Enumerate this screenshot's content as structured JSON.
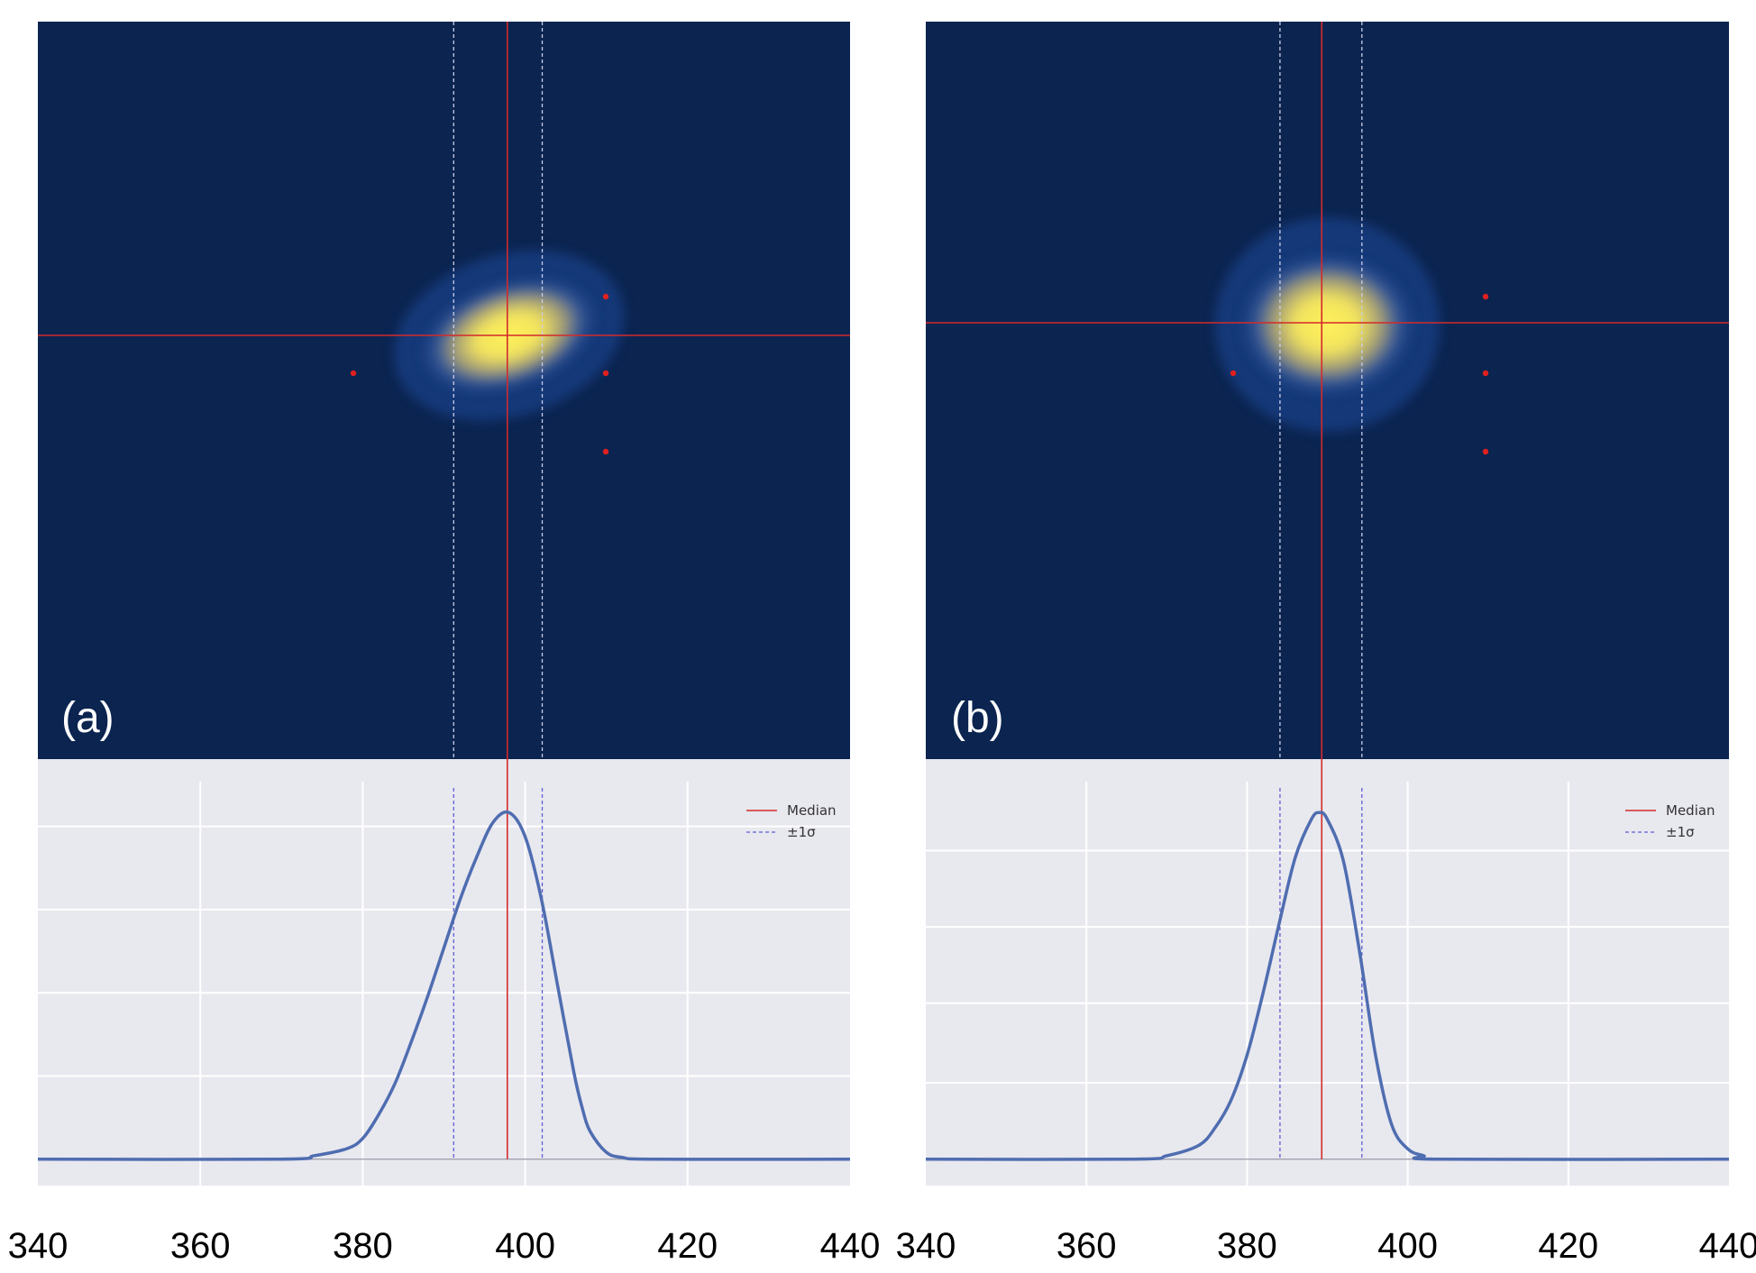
{
  "colors": {
    "heatmap_bg": "#0b2450",
    "plot_bg": "#e8e8ef",
    "grid": "#ffffff",
    "curve": "#4f6db0",
    "median_line": "#d42a2a",
    "sigma_line": "#5d60d2",
    "marker": "#e02020"
  },
  "chart_data": [
    {
      "panel_label": "(a)",
      "type": "heatmap",
      "x_data_range": [
        340,
        440
      ],
      "hotspot": {
        "x": 398,
        "elongation": "tilted-right"
      },
      "median_x": 397.8,
      "sigma_lower_x": 391.2,
      "sigma_upper_x": 402.1,
      "markers": [
        "left",
        "right-upper",
        "right-middle",
        "right-lower"
      ],
      "profile": {
        "type": "line",
        "legend": [
          {
            "label": "Median",
            "style": "solid",
            "color": "#d42a2a"
          },
          {
            "label": "±1σ",
            "style": "dashed",
            "color": "#5d60d2"
          }
        ],
        "x": [
          340,
          370,
          374,
          378,
          380,
          382,
          384,
          386,
          388,
          390,
          392,
          394,
          396,
          398,
          400,
          402,
          404,
          406,
          407,
          408,
          410,
          412,
          416,
          440
        ],
        "y": [
          0,
          0,
          0.01,
          0.03,
          0.06,
          0.13,
          0.22,
          0.34,
          0.47,
          0.61,
          0.75,
          0.87,
          0.97,
          1.0,
          0.93,
          0.75,
          0.5,
          0.25,
          0.15,
          0.08,
          0.02,
          0.005,
          0,
          0
        ],
        "xlim": [
          340,
          440
        ],
        "xticks": [
          340,
          360,
          380,
          400,
          420,
          440
        ],
        "ylim": [
          -0.05,
          1.05
        ],
        "ygrid": [
          0.24,
          0.48,
          0.72,
          0.96
        ],
        "grid": true
      }
    },
    {
      "panel_label": "(b)",
      "type": "heatmap",
      "x_data_range": [
        340,
        440
      ],
      "hotspot": {
        "x": 390,
        "elongation": "round"
      },
      "median_x": 389.3,
      "sigma_lower_x": 384.1,
      "sigma_upper_x": 394.3,
      "markers": [
        "left",
        "right-upper",
        "right-middle",
        "right-lower"
      ],
      "profile": {
        "type": "line",
        "legend": [
          {
            "label": "Median",
            "style": "solid",
            "color": "#d42a2a"
          },
          {
            "label": "±1σ",
            "style": "dashed",
            "color": "#5d60d2"
          }
        ],
        "x": [
          340,
          366,
          370,
          374,
          376,
          378,
          380,
          382,
          384,
          386,
          388,
          389,
          390,
          392,
          394,
          396,
          398,
          400,
          402,
          404,
          440
        ],
        "y": [
          0,
          0,
          0.01,
          0.04,
          0.09,
          0.17,
          0.3,
          0.48,
          0.68,
          0.87,
          0.98,
          1.0,
          0.98,
          0.86,
          0.6,
          0.3,
          0.1,
          0.03,
          0.01,
          0,
          0
        ],
        "xlim": [
          340,
          440
        ],
        "xticks": [
          340,
          360,
          380,
          400,
          420,
          440
        ],
        "ylim": [
          -0.05,
          1.05
        ],
        "ygrid": [
          0.22,
          0.45,
          0.67,
          0.89
        ],
        "grid": true
      }
    }
  ]
}
